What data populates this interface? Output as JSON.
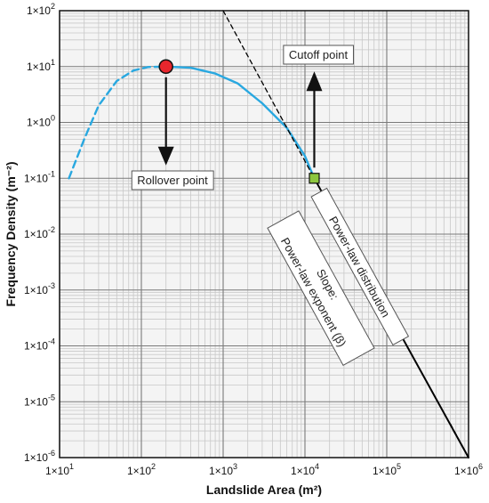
{
  "chart_data": {
    "type": "line",
    "xlabel": "Landslide Area (m²)",
    "ylabel": "Frequency Density (m⁻²)",
    "xscale": "log",
    "yscale": "log",
    "xlim": [
      10,
      1000000
    ],
    "ylim": [
      1e-06,
      100
    ],
    "grid": true,
    "x_ticks": [
      {
        "value": 10,
        "base": "1×10",
        "exp": "1"
      },
      {
        "value": 100,
        "base": "1×10",
        "exp": "2"
      },
      {
        "value": 1000,
        "base": "1×10",
        "exp": "3"
      },
      {
        "value": 10000,
        "base": "1×10",
        "exp": "4"
      },
      {
        "value": 100000,
        "base": "1×10",
        "exp": "5"
      },
      {
        "value": 1000000,
        "base": "1×10",
        "exp": "6"
      }
    ],
    "y_ticks": [
      {
        "value": 100,
        "base": "1×10",
        "exp": "2"
      },
      {
        "value": 10,
        "base": "1×10",
        "exp": "1"
      },
      {
        "value": 1,
        "base": "1×10",
        "exp": "0"
      },
      {
        "value": 0.1,
        "base": "1×10",
        "exp": "-1"
      },
      {
        "value": 0.01,
        "base": "1×10",
        "exp": "-2"
      },
      {
        "value": 0.001,
        "base": "1×10",
        "exp": "-3"
      },
      {
        "value": 0.0001,
        "base": "1×10",
        "exp": "-4"
      },
      {
        "value": 1e-05,
        "base": "1×10",
        "exp": "-5"
      },
      {
        "value": 1e-06,
        "base": "1×10",
        "exp": "-6"
      }
    ],
    "series": [
      {
        "style": "dashed",
        "color": "#29a8e0",
        "points": [
          [
            13,
            0.1
          ],
          [
            20,
            0.5
          ],
          [
            30,
            2
          ],
          [
            50,
            5.5
          ],
          [
            80,
            8.5
          ],
          [
            120,
            9.8
          ],
          [
            200,
            10
          ]
        ]
      },
      {
        "style": "solid",
        "color": "#29a8e0",
        "points": [
          [
            200,
            10
          ],
          [
            400,
            9.5
          ],
          [
            800,
            7.5
          ],
          [
            1500,
            5
          ],
          [
            3000,
            2.2
          ],
          [
            6000,
            0.8
          ],
          [
            10000,
            0.25
          ],
          [
            13000,
            0.1
          ]
        ]
      },
      {
        "style": "solid",
        "color": "#000000",
        "points": [
          [
            13000,
            0.1
          ],
          [
            1000000,
            1e-06
          ]
        ]
      },
      {
        "style": "dashed",
        "color": "#000000",
        "points": [
          [
            1000,
            100
          ],
          [
            13000,
            0.1
          ]
        ]
      },
      {
        "style": "dashed",
        "color": "#000000",
        "points": [
          [
            600000,
            4e-06
          ],
          [
            1000000,
            1e-06
          ]
        ]
      }
    ],
    "markers": [
      {
        "name": "rollover",
        "x": 200,
        "y": 10,
        "shape": "circle",
        "color": "#e8262d"
      },
      {
        "name": "cutoff",
        "x": 13000,
        "y": 0.1,
        "shape": "square",
        "color": "#8cc63f"
      }
    ],
    "annotations": {
      "rollover_label": "Rollover point",
      "cutoff_label": "Cutoff point",
      "powerlaw_label": "Power-law distribution",
      "slope_label_1": "Slope:",
      "slope_label_2": "Power-law exponent (β)"
    },
    "colors": {
      "curve": "#29a8e0",
      "rollover_marker": "#e8262d",
      "cutoff_marker": "#8cc63f",
      "grid": "#c8c8c8",
      "plot_background": "#f4f4f4"
    }
  }
}
